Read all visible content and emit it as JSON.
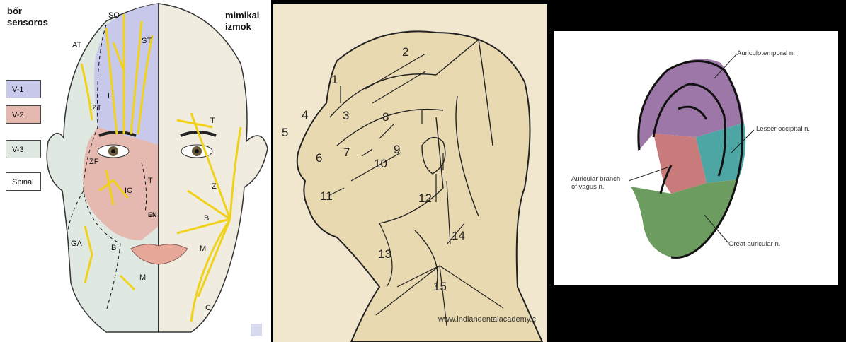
{
  "panel1": {
    "heading_left": [
      "bőr",
      "sensoros"
    ],
    "heading_right": [
      "mimikai",
      "izmok"
    ],
    "legend": [
      {
        "label": "V-1",
        "color": "#c8c9ea"
      },
      {
        "label": "V-2",
        "color": "#e6b9b0"
      },
      {
        "label": "V-3",
        "color": "#dfe9e1"
      },
      {
        "label": "Spinal",
        "color": "#ffffff"
      }
    ],
    "sensory_labels": [
      "SO",
      "ST",
      "AT",
      "L",
      "ZT",
      "ZF",
      "IO",
      "IT",
      "EN",
      "GA",
      "B",
      "M"
    ],
    "motor_labels": [
      "T",
      "Z",
      "B",
      "M",
      "C"
    ]
  },
  "panel2": {
    "numbers": [
      "1",
      "2",
      "3",
      "4",
      "5",
      "6",
      "7",
      "8",
      "9",
      "10",
      "11",
      "12",
      "13",
      "14",
      "15"
    ],
    "watermark": "www.indiandentalacademy.c"
  },
  "panel3": {
    "labels": {
      "auriculotemporal": "Auriculotemporal n.",
      "lesser_occipital": "Lesser occipital n.",
      "vagus": [
        "Auricular branch",
        "of vagus n."
      ],
      "great_auricular": "Great auricular n."
    },
    "colors": {
      "auriculotemporal": "#9c77a8",
      "lesser_occipital": "#4ea6a4",
      "vagus": "#c97a7a",
      "great_auricular": "#6d9c61"
    }
  }
}
